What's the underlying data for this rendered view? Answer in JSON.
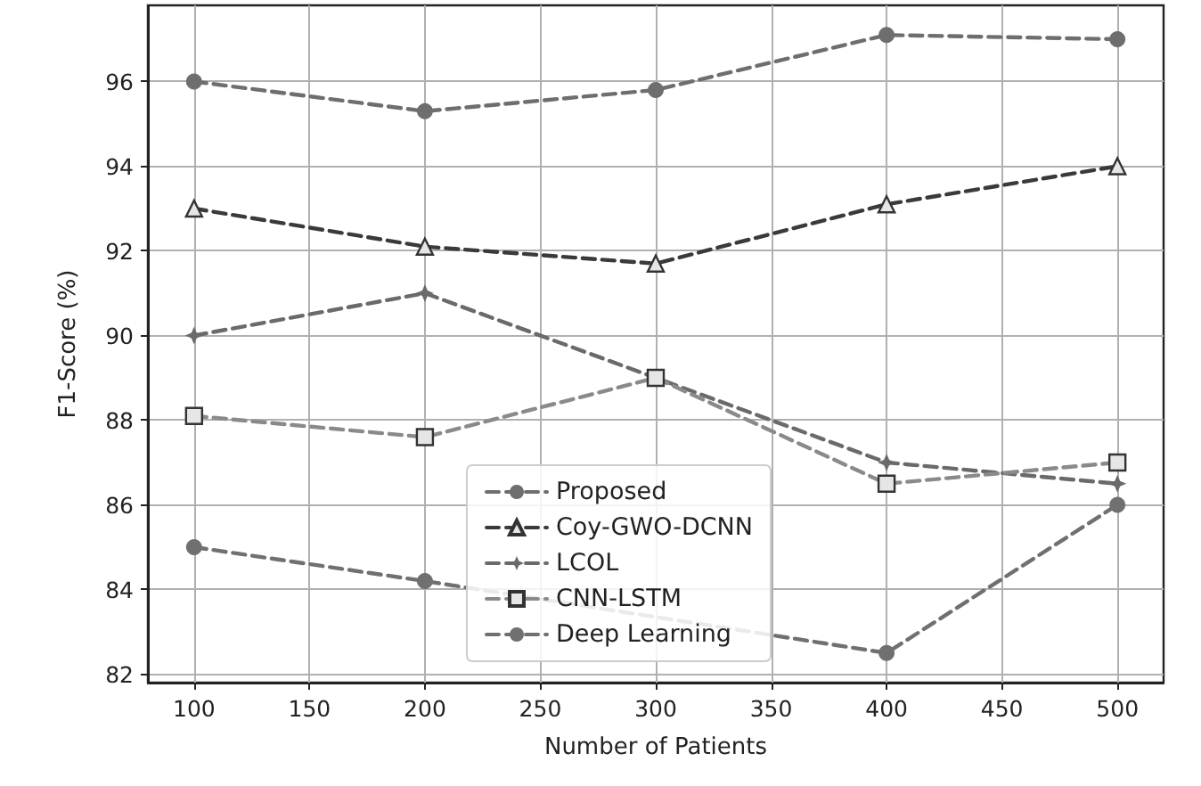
{
  "chart_data": {
    "type": "line",
    "xlabel": "Number of Patients",
    "ylabel": "F1-Score (%)",
    "x": [
      100,
      200,
      300,
      400,
      500
    ],
    "xlim": [
      80,
      520
    ],
    "xticks": [
      100,
      150,
      200,
      250,
      300,
      350,
      400,
      450,
      500
    ],
    "ylim": [
      81.8,
      97.8
    ],
    "yticks": [
      82,
      84,
      86,
      88,
      90,
      92,
      94,
      96
    ],
    "grid": true,
    "legend": "bottom",
    "line_style": "dashed",
    "series": [
      {
        "name": "Proposed",
        "color": "#6e6e6e",
        "marker": "circle",
        "values": [
          96.0,
          95.3,
          95.8,
          97.1,
          97.0
        ]
      },
      {
        "name": "Coy-GWO-DCNN",
        "color": "#3a3a3a",
        "marker": "triangle",
        "values": [
          93.0,
          92.1,
          91.7,
          93.1,
          94.0
        ]
      },
      {
        "name": "LCOL",
        "color": "#6a6a6a",
        "marker": "star",
        "values": [
          90.0,
          91.0,
          null,
          87.0,
          86.5
        ]
      },
      {
        "name": "CNN-LSTM",
        "color": "#8a8a8a",
        "marker": "square",
        "values": [
          88.1,
          87.6,
          89.0,
          86.5,
          87.0
        ]
      },
      {
        "name": "Deep Learning",
        "color": "#707070",
        "marker": "circle",
        "values": [
          85.0,
          84.2,
          null,
          82.5,
          86.0
        ]
      }
    ]
  }
}
